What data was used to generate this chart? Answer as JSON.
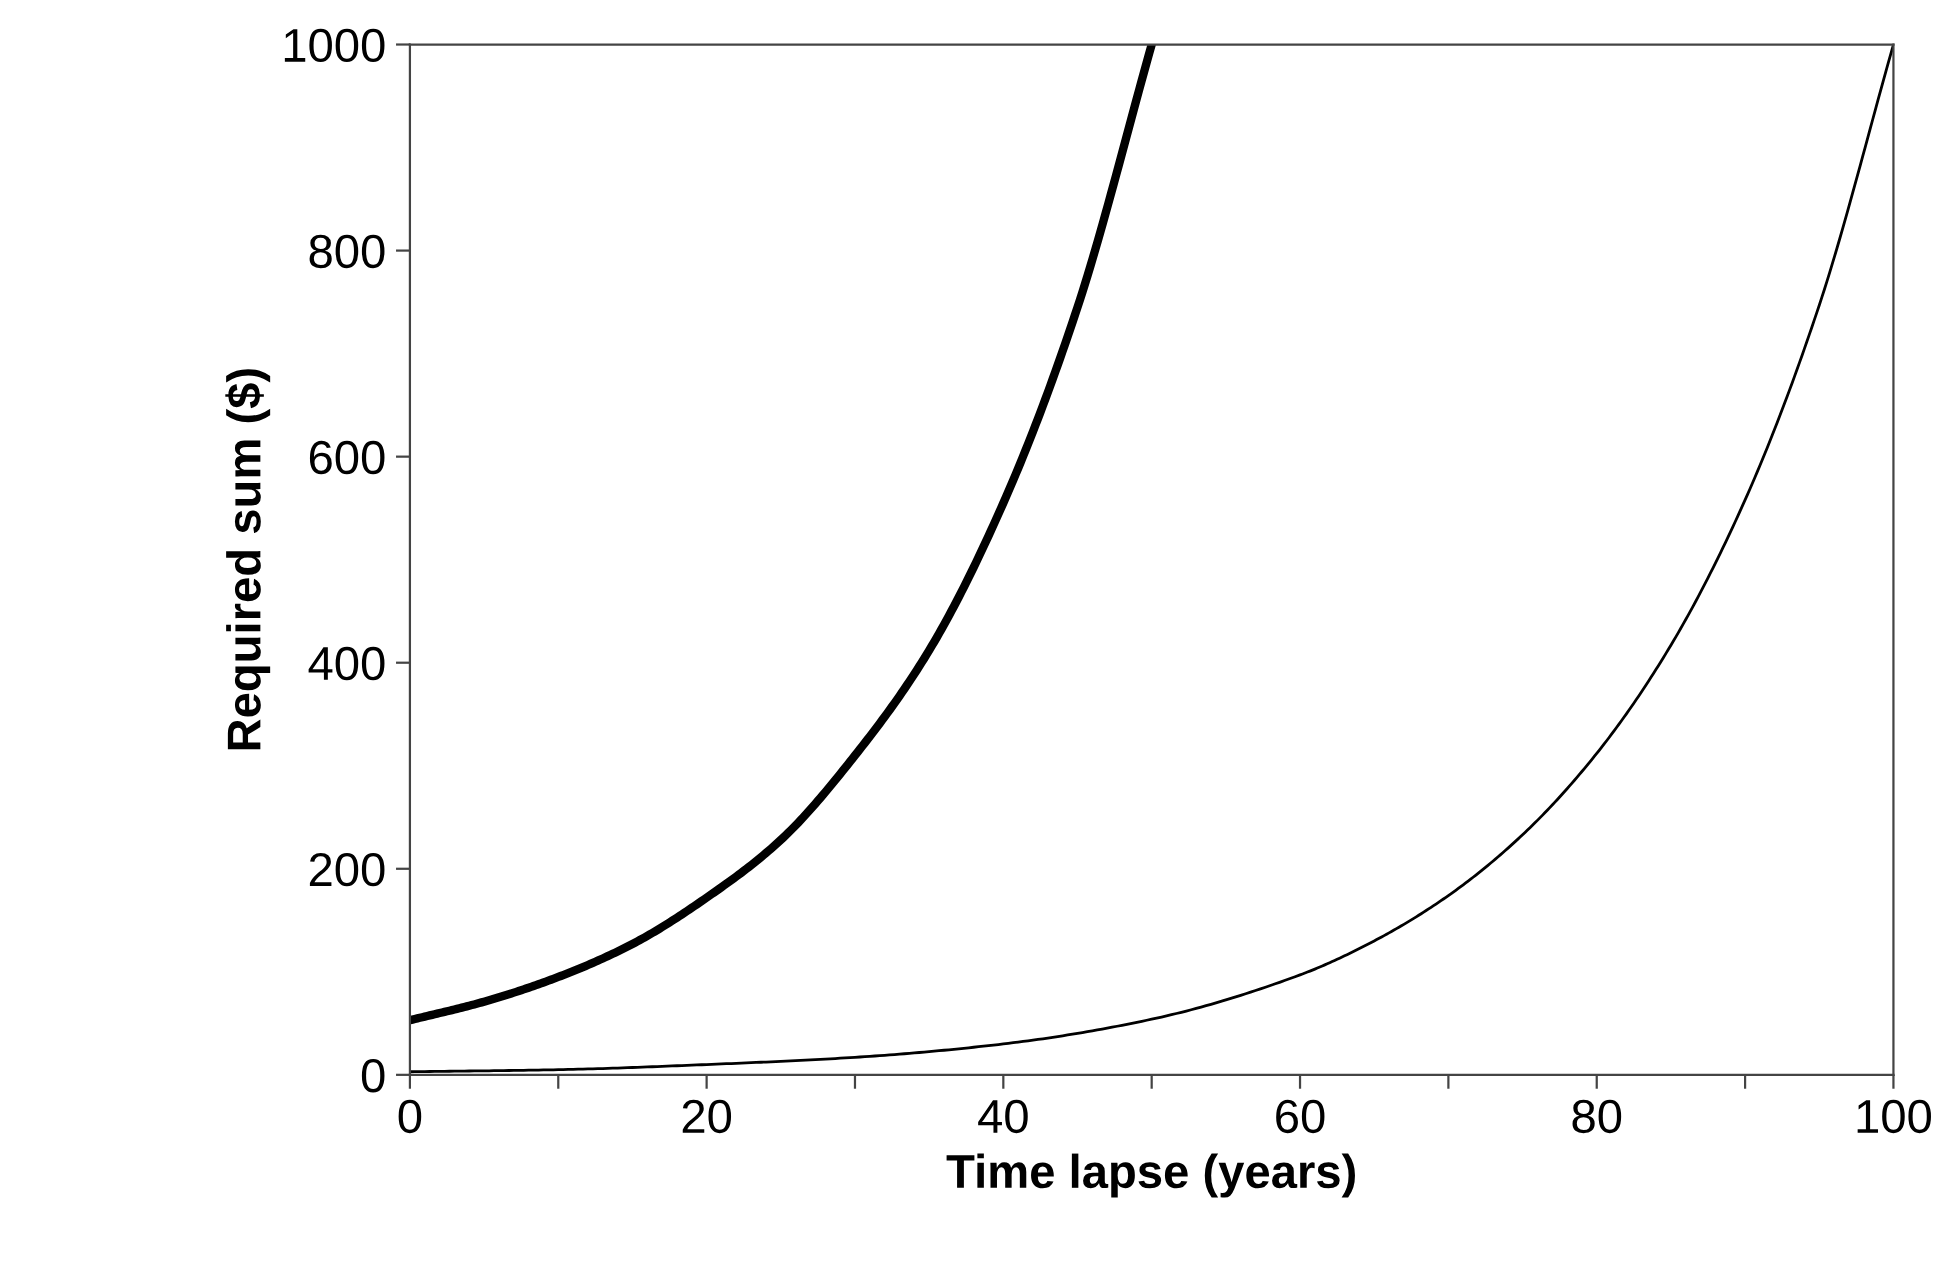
{
  "chart_data": {
    "type": "line",
    "xlabel": "Time lapse (years)",
    "ylabel": "Required sum ($)",
    "series": [
      {
        "color": "#000000",
        "x": [
          0,
          5,
          10,
          15,
          20,
          25,
          30,
          35,
          40,
          45,
          50
        ],
        "values": [
          53,
          71,
          95,
          127,
          172,
          228,
          310,
          412,
          555,
          745,
          1000
        ]
      },
      {
        "color": "#000000",
        "x": [
          0,
          10,
          20,
          30,
          40,
          50,
          60,
          65,
          70,
          75,
          80,
          85,
          90,
          95,
          100
        ],
        "values": [
          3,
          5,
          10,
          17,
          30,
          54,
          97,
          130,
          174,
          233,
          312,
          417,
          558,
          747,
          1000
        ]
      }
    ],
    "xlim": [
      0,
      100
    ],
    "ylim": [
      0,
      1000
    ],
    "xticks": [
      0,
      {
        "value": 10,
        "label": null
      },
      20,
      {
        "value": 30,
        "label": null
      },
      40,
      {
        "value": 50,
        "label": null
      },
      60,
      {
        "value": 70,
        "label": null
      },
      80,
      {
        "value": 90,
        "label": null
      },
      100
    ],
    "yticks": [
      0,
      200,
      400,
      600,
      800,
      1000
    ],
    "grid": false,
    "legend": false,
    "marker": "none",
    "line_style": "solid"
  }
}
